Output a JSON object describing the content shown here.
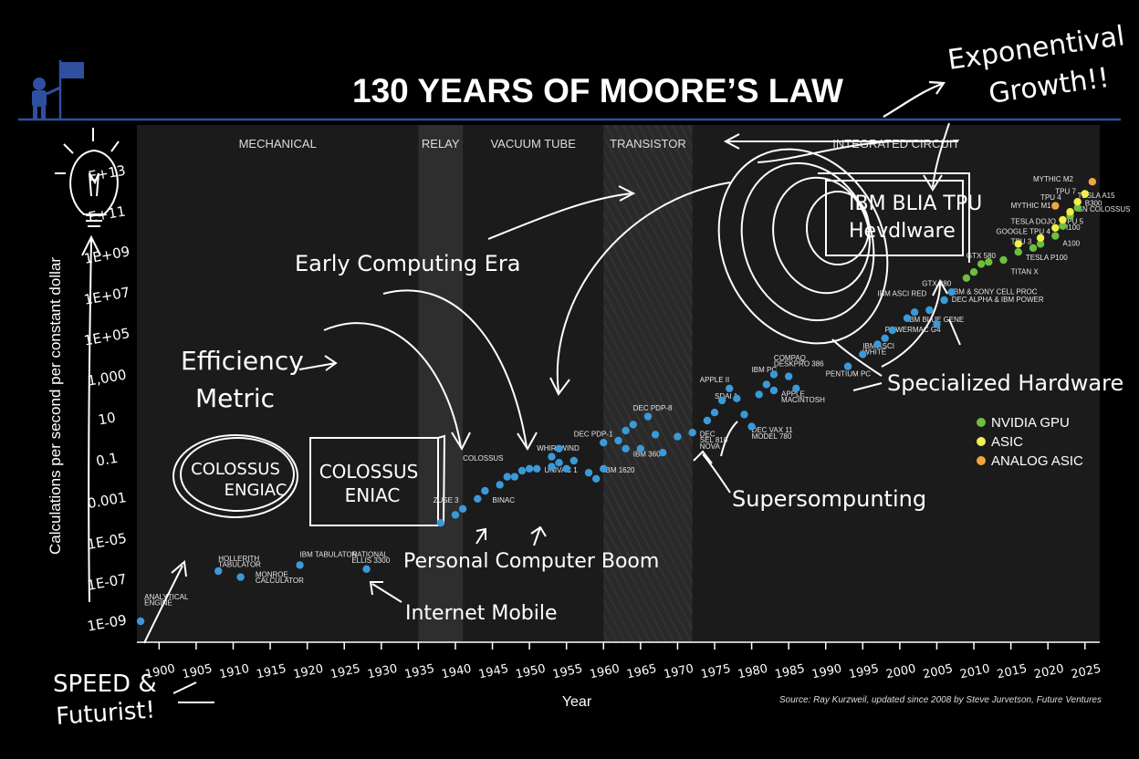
{
  "header": {
    "title": "130 YEARS OF MOORE’S LAW",
    "corner_note_line1": "Exponentival",
    "corner_note_line2": "Growth!!"
  },
  "footer": {
    "source": "Source: Ray Kurzweil, updated since 2008 by Steve Jurvetson, Future Ventures",
    "sig_line1": "SPEED &",
    "sig_line2": "Futurist!"
  },
  "colors": {
    "background": "#000000",
    "plot_bg": "#1b1b1b",
    "accent_blue": "#2f4f9f",
    "point_blue": "#3a9ad9",
    "nvidia_green": "#6cbf3c",
    "asic_yellow": "#f2ef4a",
    "analog_orange": "#f0a540"
  },
  "chart_data": {
    "type": "scatter",
    "xlabel": "Year",
    "ylabel": "Calculations per second per constant dollar",
    "xlim": [
      1897,
      2027
    ],
    "x_ticks": [
      "1900",
      "1905",
      "1910",
      "1915",
      "1920",
      "1925",
      "1930",
      "1935",
      "1940",
      "1945",
      "1950",
      "1955",
      "1960",
      "1965",
      "1970",
      "1975",
      "1980",
      "1985",
      "1990",
      "1995",
      "2000",
      "2005",
      "2010",
      "2015",
      "2020",
      "2025"
    ],
    "y_ticks": [
      "1E+13",
      "1E+11",
      "1E+09",
      "1E+07",
      "1E+05",
      "1,000",
      "10",
      "0.1",
      "0.001",
      "1E-05",
      "1E-07",
      "1E-09"
    ],
    "y_tick_text": [
      "E+13",
      "E+11",
      "1E+09",
      "1E+07",
      "1E+05",
      "1,000",
      "10",
      "0.1",
      "0.001",
      "1E-05",
      "1E-07",
      "1E-09"
    ],
    "ylim_log10": [
      -10,
      14
    ],
    "grid": false,
    "eras": [
      {
        "label": "MECHANICAL",
        "from": 1897,
        "to": 1935
      },
      {
        "label": "RELAY",
        "from": 1935,
        "to": 1941
      },
      {
        "label": "VACUUM TUBE",
        "from": 1941,
        "to": 1960
      },
      {
        "label": "TRANSISTOR",
        "from": 1960,
        "to": 1972
      },
      {
        "label": "INTEGRATED CIRCUIT",
        "from": 1972,
        "to": 2027
      }
    ],
    "legend": {
      "placement": "right",
      "entries": [
        {
          "name": "NVIDIA GPU",
          "color": "#6cbf3c"
        },
        {
          "name": "ASIC",
          "color": "#f2ef4a"
        },
        {
          "name": "ANALOG ASIC",
          "color": "#f0a540"
        }
      ]
    },
    "series": [
      {
        "name": "",
        "color": "#3a9ad9",
        "points": [
          [
            1897.5,
            -9.0
          ],
          [
            1908,
            -6.5
          ],
          [
            1911,
            -6.8
          ],
          [
            1919,
            -6.2
          ],
          [
            1928,
            -6.4
          ],
          [
            1938,
            -4.1
          ],
          [
            1940,
            -3.7
          ],
          [
            1941,
            -3.4
          ],
          [
            1943,
            -2.9
          ],
          [
            1944,
            -2.5
          ],
          [
            1946,
            -2.2
          ],
          [
            1947,
            -1.8
          ],
          [
            1948,
            -1.8
          ],
          [
            1949,
            -1.5
          ],
          [
            1950,
            -1.4
          ],
          [
            1951,
            -1.4
          ],
          [
            1953,
            -1.3
          ],
          [
            1954,
            -1.1
          ],
          [
            1953,
            -0.8
          ],
          [
            1954,
            -0.4
          ],
          [
            1955,
            -1.4
          ],
          [
            1956,
            -1.0
          ],
          [
            1958,
            -1.6
          ],
          [
            1959,
            -1.9
          ],
          [
            1960,
            -1.4
          ],
          [
            1960,
            -0.1
          ],
          [
            1962,
            0.0
          ],
          [
            1963,
            -0.4
          ],
          [
            1963,
            0.5
          ],
          [
            1964,
            0.8
          ],
          [
            1965,
            -0.4
          ],
          [
            1966,
            1.2
          ],
          [
            1967,
            0.3
          ],
          [
            1968,
            -0.6
          ],
          [
            1970,
            0.2
          ],
          [
            1972,
            0.4
          ],
          [
            1974,
            1.0
          ],
          [
            1975,
            1.4
          ],
          [
            1976,
            2.0
          ],
          [
            1977,
            2.6
          ],
          [
            1978,
            2.1
          ],
          [
            1979,
            1.3
          ],
          [
            1980,
            0.7
          ],
          [
            1981,
            2.3
          ],
          [
            1982,
            2.8
          ],
          [
            1983,
            2.5
          ],
          [
            1983,
            3.3
          ],
          [
            1985,
            3.2
          ],
          [
            1986,
            2.6
          ],
          [
            1993,
            3.7
          ],
          [
            1995,
            4.3
          ],
          [
            1997,
            4.8
          ],
          [
            1998,
            5.1
          ],
          [
            1999,
            5.5
          ],
          [
            2001,
            6.1
          ],
          [
            2002,
            6.4
          ],
          [
            2004,
            6.5
          ],
          [
            2005,
            5.8
          ],
          [
            2006,
            7.0
          ],
          [
            2007,
            7.4
          ]
        ]
      },
      {
        "name": "NVIDIA GPU",
        "color": "#6cbf3c",
        "points": [
          [
            2009,
            8.1
          ],
          [
            2010,
            8.4
          ],
          [
            2011,
            8.8
          ],
          [
            2012,
            8.9
          ],
          [
            2014,
            9.0
          ],
          [
            2016,
            9.4
          ],
          [
            2018,
            9.6
          ],
          [
            2019,
            9.8
          ],
          [
            2021,
            10.2
          ],
          [
            2022,
            10.7
          ],
          [
            2023,
            11.2
          ],
          [
            2024,
            11.6
          ]
        ]
      },
      {
        "name": "ASIC",
        "color": "#f2ef4a",
        "points": [
          [
            2016,
            9.8
          ],
          [
            2019,
            10.1
          ],
          [
            2021,
            10.6
          ],
          [
            2022,
            11.0
          ],
          [
            2023,
            11.4
          ],
          [
            2024,
            11.9
          ],
          [
            2025,
            12.3
          ]
        ]
      },
      {
        "name": "ANALOG ASIC",
        "color": "#f0a540",
        "points": [
          [
            2021,
            11.7
          ],
          [
            2026,
            12.9
          ]
        ]
      }
    ],
    "annotations": [
      {
        "text": "HOLLERITH",
        "x": 1908,
        "y": -6.0
      },
      {
        "text": "TABULATOR",
        "x": 1908,
        "y": -6.3
      },
      {
        "text": "IBM TABULATOR",
        "x": 1919,
        "y": -5.8
      },
      {
        "text": "MONROE",
        "x": 1913,
        "y": -6.8
      },
      {
        "text": "CALCULATOR",
        "x": 1913,
        "y": -7.1
      },
      {
        "text": "NATIONAL",
        "x": 1926,
        "y": -5.8
      },
      {
        "text": "ELLIS 3300",
        "x": 1926,
        "y": -6.1
      },
      {
        "text": "ANALYTICAL",
        "x": 1898,
        "y": -7.9
      },
      {
        "text": "ENGINE",
        "x": 1898,
        "y": -8.2
      },
      {
        "text": "COLOSSUS",
        "x": 1941,
        "y": -1.0
      },
      {
        "text": "BINAC",
        "x": 1945,
        "y": -3.1
      },
      {
        "text": "ZUSE 3",
        "x": 1937,
        "y": -3.1
      },
      {
        "text": "WHIRLWIND",
        "x": 1951,
        "y": -0.5
      },
      {
        "text": "UNIVAC 1",
        "x": 1952,
        "y": -1.6
      },
      {
        "text": "DEC PDP-1",
        "x": 1956,
        "y": 0.2
      },
      {
        "text": "DEC PDP-8",
        "x": 1964,
        "y": 1.5
      },
      {
        "text": "IBM 360",
        "x": 1964,
        "y": -0.8
      },
      {
        "text": "IBM 1620",
        "x": 1960,
        "y": -1.6
      },
      {
        "text": "DEC",
        "x": 1973,
        "y": 0.2
      },
      {
        "text": "SEL 810",
        "x": 1973,
        "y": -0.1
      },
      {
        "text": "NOVA",
        "x": 1973,
        "y": -0.4
      },
      {
        "text": "APPLE II",
        "x": 1973,
        "y": 2.9
      },
      {
        "text": "IBM PC",
        "x": 1980,
        "y": 3.4
      },
      {
        "text": "SDAI 1",
        "x": 1975,
        "y": 2.1
      },
      {
        "text": "APPLE",
        "x": 1984,
        "y": 2.2
      },
      {
        "text": "MACINTOSH",
        "x": 1984,
        "y": 1.9
      },
      {
        "text": "DEC VAX 11",
        "x": 1980,
        "y": 0.4
      },
      {
        "text": "MODEL 780",
        "x": 1980,
        "y": 0.1
      },
      {
        "text": "COMPAQ",
        "x": 1983,
        "y": 4.0
      },
      {
        "text": "DESKPRO 386",
        "x": 1983,
        "y": 3.7
      },
      {
        "text": "PENTIUM PC",
        "x": 1990,
        "y": 3.2
      },
      {
        "text": "IBM ASCI",
        "x": 1995,
        "y": 4.6
      },
      {
        "text": "WHITE",
        "x": 1995,
        "y": 4.3
      },
      {
        "text": "POWERMAC G4",
        "x": 1998,
        "y": 5.4
      },
      {
        "text": "IBM BLUE GENE",
        "x": 2001,
        "y": 5.9
      },
      {
        "text": "IBM ASCI RED",
        "x": 1997,
        "y": 7.2
      },
      {
        "text": "GTX 280",
        "x": 2003,
        "y": 7.7
      },
      {
        "text": "GTX 580",
        "x": 2009,
        "y": 9.1
      },
      {
        "text": "IBM & SONY CELL PROC",
        "x": 2007,
        "y": 7.3
      },
      {
        "text": "DEC ALPHA & IBM POWER",
        "x": 2007,
        "y": 6.9
      },
      {
        "text": "TITAN X",
        "x": 2015,
        "y": 8.3
      },
      {
        "text": "TESLA P100",
        "x": 2017,
        "y": 9.0
      },
      {
        "text": "A100",
        "x": 2022,
        "y": 9.7
      },
      {
        "text": "TPU 3",
        "x": 2015,
        "y": 9.8
      },
      {
        "text": "GOOGLE TPU 4",
        "x": 2013,
        "y": 10.3
      },
      {
        "text": "TESLA DOJO",
        "x": 2015,
        "y": 10.8
      },
      {
        "text": "MYTHIC M1",
        "x": 2015,
        "y": 11.6
      },
      {
        "text": "TPU 4",
        "x": 2019,
        "y": 12.0
      },
      {
        "text": "TPU 7",
        "x": 2021,
        "y": 12.3
      },
      {
        "text": "MYTHIC M2",
        "x": 2018,
        "y": 12.9
      },
      {
        "text": "TESLA A15",
        "x": 2024,
        "y": 12.1
      },
      {
        "text": "B300",
        "x": 2025,
        "y": 11.7
      },
      {
        "text": "SN COLOSSUS",
        "x": 2024,
        "y": 11.4
      },
      {
        "text": "TPU 5",
        "x": 2022,
        "y": 10.8
      },
      {
        "text": "H100",
        "x": 2022,
        "y": 10.5
      }
    ]
  },
  "sketch_notes": {
    "lightbulb_caption": "",
    "early_era": "Early Computing Era",
    "efficiency_line1": "Efficiency",
    "efficiency_line2": "Metric",
    "colossus_circle_line1": "COLOSSUS",
    "colossus_circle_line2": "ENGIAC",
    "colossus_box_line1": "COLOSSUS",
    "colossus_box_line2": "ENIAC",
    "pc_boom": "Personal Computer Boom",
    "internet": "Internet Mobile",
    "supercomputing": "Supersompunting",
    "specialized": "Specialized Hardware",
    "ibm_box_line1": "IBM BLIA TPU",
    "ibm_box_line2": "Hevdlware"
  }
}
